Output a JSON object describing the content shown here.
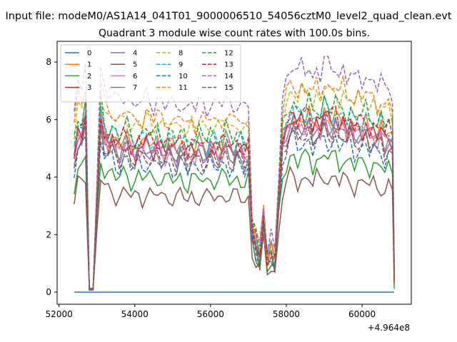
{
  "figure": {
    "suptitle": "Input file: modeM0/AS1A14_041T01_9000006510_54056cztM0_level2_quad_clean.evt",
    "title": "Quadrant 3 module wise count rates with 100.0s bins."
  },
  "chart_data": {
    "type": "line",
    "title": "Quadrant 3 module wise count rates with 100.0s bins.",
    "xlabel": "",
    "ylabel": "",
    "x_offset_label": "+4.964e8",
    "x_ticks": [
      52000,
      54000,
      56000,
      58000,
      60000
    ],
    "x_tick_labels": [
      "52000",
      "54000",
      "56000",
      "58000",
      "60000"
    ],
    "y_ticks": [
      0,
      2,
      4,
      6,
      8
    ],
    "y_tick_labels": [
      "0",
      "2",
      "4",
      "6",
      "8"
    ],
    "xlim": [
      51950,
      61300
    ],
    "ylim": [
      -0.42,
      8.72
    ],
    "grid": false,
    "legend_position": "top-left",
    "legend_columns": 4,
    "x": [
      52400,
      52500,
      52600,
      52700,
      52800,
      52900,
      53000,
      53100,
      53200,
      53300,
      53400,
      53500,
      53600,
      53700,
      53800,
      53900,
      54000,
      54100,
      54200,
      54300,
      54400,
      54500,
      54600,
      54700,
      54800,
      54900,
      55000,
      55100,
      55200,
      55300,
      55400,
      55500,
      55600,
      55700,
      55800,
      55900,
      56000,
      56100,
      56200,
      56300,
      56400,
      56500,
      56600,
      56700,
      56800,
      56900,
      57000,
      57100,
      57200,
      57300,
      57400,
      57500,
      57600,
      57700,
      57800,
      57900,
      58000,
      58100,
      58200,
      58300,
      58400,
      58500,
      58600,
      58700,
      58800,
      58900,
      59000,
      59100,
      59200,
      59300,
      59400,
      59500,
      59600,
      59700,
      59800,
      59900,
      60000,
      60100,
      60200,
      60300,
      60400,
      60500,
      60600,
      60700,
      60800,
      60850
    ],
    "base": [
      4.4,
      5.2,
      5.1,
      5.6,
      0.1,
      0.1,
      2.9,
      5.6,
      5.0,
      4.8,
      4.9,
      4.7,
      4.6,
      4.8,
      4.9,
      4.6,
      4.5,
      4.7,
      4.6,
      4.8,
      4.7,
      4.6,
      4.8,
      4.6,
      4.5,
      4.7,
      4.6,
      4.5,
      4.7,
      4.6,
      4.4,
      4.6,
      4.5,
      4.7,
      4.6,
      4.5,
      4.7,
      4.6,
      4.5,
      4.6,
      4.8,
      4.6,
      4.5,
      4.7,
      4.6,
      4.4,
      4.5,
      1.9,
      1.5,
      1.1,
      2.3,
      1.0,
      1.3,
      0.9,
      2.9,
      4.8,
      5.2,
      5.5,
      5.6,
      5.3,
      5.5,
      5.4,
      5.6,
      5.2,
      5.5,
      5.3,
      5.7,
      5.5,
      5.4,
      5.6,
      5.3,
      5.5,
      5.2,
      5.4,
      5.1,
      5.3,
      5.2,
      5.4,
      5.1,
      5.2,
      5.0,
      5.2,
      4.9,
      5.1,
      4.9,
      0.6
    ],
    "series": [
      {
        "name": "0",
        "color": "#1f77b4",
        "dash": false,
        "level": 0.0
      },
      {
        "name": "1",
        "color": "#ff7f0e",
        "dash": false,
        "level": 1.1
      },
      {
        "name": "2",
        "color": "#2ca02c",
        "dash": false,
        "level": 0.85
      },
      {
        "name": "3",
        "color": "#d62728",
        "dash": false,
        "level": 1.08
      },
      {
        "name": "4",
        "color": "#9467bd",
        "dash": false,
        "level": 1.05
      },
      {
        "name": "5",
        "color": "#8c564b",
        "dash": false,
        "level": 0.72
      },
      {
        "name": "6",
        "color": "#e377c2",
        "dash": false,
        "level": 1.06
      },
      {
        "name": "7",
        "color": "#7f7f7f",
        "dash": false,
        "level": 1.02
      },
      {
        "name": "8",
        "color": "#bcbd22",
        "dash": true,
        "level": 1.26
      },
      {
        "name": "9",
        "color": "#17becf",
        "dash": true,
        "level": 1.14
      },
      {
        "name": "10",
        "color": "#1f77b4",
        "dash": true,
        "level": 0.95
      },
      {
        "name": "11",
        "color": "#ff7f0e",
        "dash": true,
        "level": 1.3
      },
      {
        "name": "12",
        "color": "#2ca02c",
        "dash": true,
        "level": 1.18
      },
      {
        "name": "13",
        "color": "#d62728",
        "dash": true,
        "level": 1.12
      },
      {
        "name": "14",
        "color": "#9467bd",
        "dash": true,
        "level": 1.42
      },
      {
        "name": "15",
        "color": "#8c564b",
        "dash": true,
        "level": 1.0
      }
    ]
  }
}
